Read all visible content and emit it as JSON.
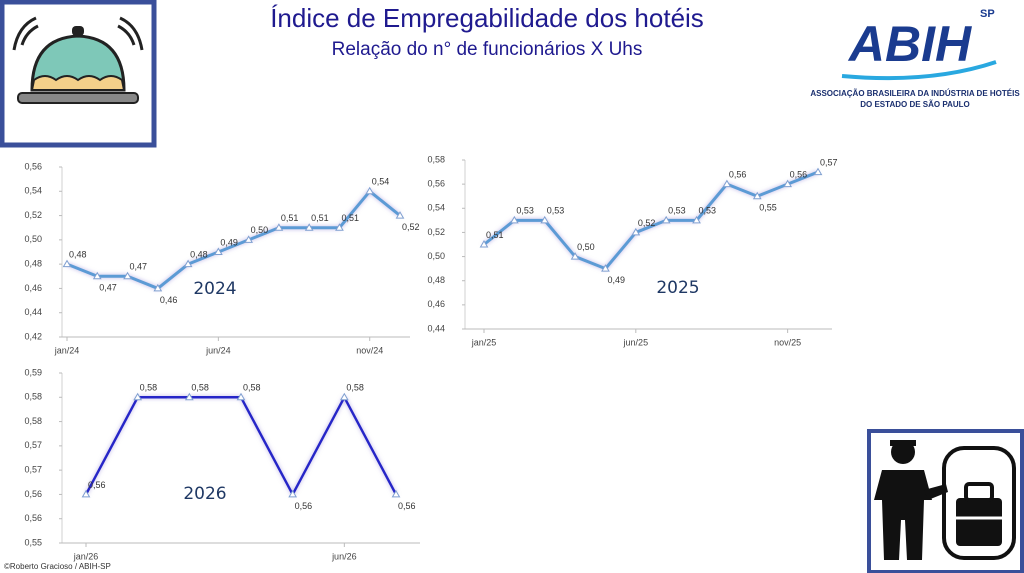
{
  "title": "Índice de Empregabilidade dos hotéis",
  "subtitle": "Relação do n° de funcionários X Uhs",
  "logo": {
    "name": "ABIH",
    "region": "SP",
    "line1": "ASSOCIAÇÃO BRASILEIRA DA INDÚSTRIA DE HOTÉIS",
    "line2": "DO ESTADO DE SÃO PAULO"
  },
  "credit": "©Roberto Gracioso / ABIH-SP",
  "chart_data": [
    {
      "type": "line",
      "annotation": "2024",
      "color": "#5b9bd5",
      "grid": false,
      "categories": [
        "jan/24",
        null,
        null,
        null,
        null,
        "jun/24",
        null,
        null,
        null,
        null,
        "nov/24",
        null
      ],
      "values": [
        0.48,
        0.47,
        0.47,
        0.46,
        0.48,
        0.49,
        0.5,
        0.51,
        0.51,
        0.51,
        0.54,
        0.52
      ],
      "value_labels": [
        "0,48",
        "0,47",
        "0,47",
        "0,46",
        "0,48",
        "0,49",
        "0,50",
        "0,51",
        "0,51",
        "0,51",
        "0,54",
        "0,52"
      ],
      "ylim": [
        0.42,
        0.56
      ],
      "yticks": [
        {
          "value": 0.42,
          "label": "0,42"
        },
        {
          "value": 0.44,
          "label": "0,44"
        },
        {
          "value": 0.46,
          "label": "0,46"
        },
        {
          "value": 0.48,
          "label": "0,48"
        },
        {
          "value": 0.5,
          "label": "0,50"
        },
        {
          "value": 0.52,
          "label": "0,52"
        },
        {
          "value": 0.54,
          "label": "0,54"
        },
        {
          "value": 0.56,
          "label": "0,56"
        }
      ]
    },
    {
      "type": "line",
      "annotation": "2025",
      "color": "#5b9bd5",
      "grid": false,
      "categories": [
        "jan/25",
        null,
        null,
        null,
        null,
        "jun/25",
        null,
        null,
        null,
        null,
        "nov/25",
        null
      ],
      "values": [
        0.51,
        0.53,
        0.53,
        0.5,
        0.49,
        0.52,
        0.53,
        0.53,
        0.56,
        0.55,
        0.56,
        0.57
      ],
      "value_labels": [
        "0,51",
        "0,53",
        "0,53",
        "0,50",
        "0,49",
        "0,52",
        "0,53",
        "0,53",
        "0,56",
        "0,55",
        "0,56",
        "0,57"
      ],
      "ylim": [
        0.44,
        0.58
      ],
      "yticks": [
        {
          "value": 0.44,
          "label": "0,44"
        },
        {
          "value": 0.46,
          "label": "0,46"
        },
        {
          "value": 0.48,
          "label": "0,48"
        },
        {
          "value": 0.5,
          "label": "0,50"
        },
        {
          "value": 0.52,
          "label": "0,52"
        },
        {
          "value": 0.54,
          "label": "0,54"
        },
        {
          "value": 0.56,
          "label": "0,56"
        },
        {
          "value": 0.58,
          "label": "0,58"
        }
      ]
    },
    {
      "type": "line",
      "annotation": "2026",
      "color": "#2828c8",
      "grid": false,
      "categories": [
        "jan/26",
        null,
        null,
        null,
        null,
        "jun/26",
        null
      ],
      "values": [
        0.56,
        0.58,
        0.58,
        0.58,
        0.56,
        0.58,
        0.56
      ],
      "value_labels": [
        "0,56",
        "0,58",
        "0,58",
        "0,58",
        "0,56",
        "0,58",
        "0,56"
      ],
      "ylim": [
        0.55,
        0.585
      ],
      "yticks": [
        {
          "value": 0.55,
          "label": "0,55"
        },
        {
          "value": 0.555,
          "label": "0,56"
        },
        {
          "value": 0.56,
          "label": "0,56"
        },
        {
          "value": 0.565,
          "label": "0,57"
        },
        {
          "value": 0.57,
          "label": "0,57"
        },
        {
          "value": 0.575,
          "label": "0,58"
        },
        {
          "value": 0.58,
          "label": "0,58"
        },
        {
          "value": 0.585,
          "label": "0,59"
        }
      ]
    }
  ]
}
